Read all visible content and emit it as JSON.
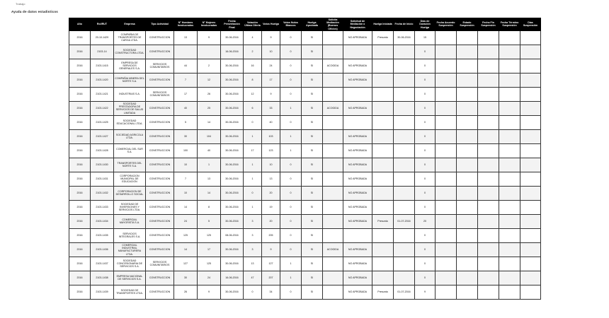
{
  "header": {
    "logo_text": "Trabajo",
    "subtitle": "Ayuda de datos estadisticos"
  },
  "colors": {
    "header_bg": "#000000",
    "logo_red": "#d9333a",
    "logo_blue": "#2b4f9e"
  },
  "table": {
    "columns": [
      "Año",
      "Rol/RUT",
      "Empresa",
      "Tipo Actividad",
      "N° Hombres Involucrados",
      "N° Mujeres Involucradas",
      "Fecha Presentación Final",
      "Votación Última Oferta",
      "Votos Huelga",
      "Votos Nulos Blancos",
      "Huelga Aprobada",
      "Solicita Mediación (Buenos Oficios)",
      "Solicitud de Mediación o Negociación",
      "Huelga Iniciada",
      "Fecha de Inicio",
      "Días de Duración Huelga",
      "Fecha Acuerdo Suspensión",
      "Estado Suspensión",
      "Fecha Fin Suspensión",
      "Fecha Término Suspensión",
      "Días Suspensión"
    ],
    "rows": [
      [
        "2016",
        "20-10-1429",
        "COMPAÑIA DE TRANSPORTES DE CARGA LTDA.",
        "CONSTRUCCION",
        "13",
        "9",
        "30-06-2016",
        "4",
        "9",
        "0",
        "SI",
        "",
        "NO APROBADA",
        "Presunta",
        "30-06-2016",
        "15",
        "",
        "",
        "",
        "",
        ""
      ],
      [
        "2016",
        "2103-14",
        "SOCIEDAD CONSTRUCTORA LTDA.",
        "CONSTRUCCION",
        "",
        "",
        "16-06-2016",
        "2",
        "10",
        "0",
        "SI",
        "",
        "",
        "",
        "",
        "0",
        "",
        "",
        "",
        "",
        ""
      ],
      [
        "2016",
        "2103-1415",
        "EMPRESA DE SERVICIOS GENERALES S.A.",
        "SERVICIOS COMUNITARIOS",
        "44",
        "2",
        "30-06-2016",
        "16",
        "24",
        "0",
        "SI",
        "ACOGIDA",
        "NO APROBADA",
        "",
        "",
        "0",
        "",
        "",
        "",
        "",
        ""
      ],
      [
        "2016",
        "2103-1420",
        "COMPAÑIA MINERA DEL NORTE S.A.",
        "CONSTRUCCION",
        "7",
        "12",
        "30-06-2016",
        "8",
        "17",
        "0",
        "SI",
        "",
        "NO APROBADA",
        "",
        "",
        "0",
        "",
        "",
        "",
        "",
        ""
      ],
      [
        "2016",
        "2103-1421",
        "INDUSTRIAS S.A.",
        "SERVICIOS COMUNITARIOS",
        "17",
        "26",
        "30-06-2016",
        "12",
        "9",
        "0",
        "SI",
        "",
        "",
        "",
        "",
        "0",
        "",
        "",
        "",
        "",
        ""
      ],
      [
        "2016",
        "2103-1422",
        "SOCIEDAD PRESTADORA DE SERVICIOS DE SALUD LIMITADA",
        "CONSTRUCCION",
        "40",
        "25",
        "30-06-2016",
        "6",
        "33",
        "1",
        "SI",
        "ACOGIDA",
        "NO APROBADA",
        "",
        "",
        "0",
        "",
        "",
        "",
        "",
        ""
      ],
      [
        "2016",
        "2103-1425",
        "SOCIEDAD EDUCACIONAL LTDA.",
        "CONSTRUCCION",
        "5",
        "14",
        "30-06-2016",
        "0",
        "40",
        "0",
        "SI",
        "",
        "",
        "",
        "",
        "0",
        "",
        "",
        "",
        "",
        ""
      ],
      [
        "2016",
        "2103-1427",
        "SOCIEDAD AGRICOLA LTDA.",
        "CONSTRUCCION",
        "30",
        "104",
        "30-06-2016",
        "1",
        "103",
        "1",
        "SI",
        "",
        "NO APROBADA",
        "",
        "",
        "0",
        "",
        "",
        "",
        "",
        ""
      ],
      [
        "2016",
        "2103-1428",
        "COMERCIAL DEL SUR S.A.",
        "CONSTRUCCION",
        "100",
        "40",
        "30-06-2016",
        "17",
        "123",
        "1",
        "SI",
        "",
        "NO APROBADA",
        "",
        "",
        "0",
        "",
        "",
        "",
        "",
        ""
      ],
      [
        "2016",
        "2103-1430",
        "TRANSPORTES DEL NORTE S.A.",
        "CONSTRUCCION",
        "10",
        "1",
        "30-06-2016",
        "1",
        "10",
        "0",
        "SI",
        "",
        "NO APROBADA",
        "",
        "",
        "0",
        "",
        "",
        "",
        "",
        ""
      ],
      [
        "2016",
        "2103-1431",
        "CORPORACION MUNICIPAL DE EDUCACION",
        "CONSTRUCCION",
        "7",
        "13",
        "30-06-2016",
        "1",
        "13",
        "0",
        "SI",
        "",
        "NO APROBADA",
        "",
        "",
        "0",
        "",
        "",
        "",
        "",
        ""
      ],
      [
        "2016",
        "2103-1432",
        "CORPORACION DE DESARROLLO SOCIAL",
        "CONSTRUCCION",
        "10",
        "14",
        "30-06-2016",
        "0",
        "20",
        "0",
        "SI",
        "",
        "NO APROBADA",
        "",
        "",
        "0",
        "",
        "",
        "",
        "",
        ""
      ],
      [
        "2016",
        "2103-1433",
        "SOCIEDAD DE INVERSIONES Y SERVICIOS LTDA.",
        "CONSTRUCCION",
        "14",
        "8",
        "30-06-2016",
        "1",
        "19",
        "0",
        "SI",
        "",
        "NO APROBADA",
        "",
        "",
        "0",
        "",
        "",
        "",
        "",
        ""
      ],
      [
        "2016",
        "2103-1434",
        "COMERCIAL MAYORISTA S.A.",
        "CONSTRUCCION",
        "24",
        "5",
        "30-06-2016",
        "3",
        "20",
        "0",
        "SI",
        "",
        "NO APROBADA",
        "Presunta",
        "01-07-2016",
        "20",
        "",
        "",
        "",
        "",
        ""
      ],
      [
        "2016",
        "2103-1435",
        "SERVICIOS INTEGRALES S.A.",
        "CONSTRUCCION",
        "125",
        "125",
        "08-06-2016",
        "3",
        "205",
        "0",
        "SI",
        "",
        "",
        "",
        "",
        "0",
        "",
        "",
        "",
        "",
        ""
      ],
      [
        "2016",
        "2103-1436",
        "COMERCIAL INDUSTRIAL MANUFACTURERA LTDA.",
        "CONSTRUCCION",
        "14",
        "17",
        "30-06-2016",
        "3",
        "9",
        "0",
        "SI",
        "ACOGIDA",
        "NO APROBADA",
        "",
        "",
        "0",
        "",
        "",
        "",
        "",
        ""
      ],
      [
        "2016",
        "2103-1437",
        "SOCIEDAD CONCESIONARIA DE SERVICIOS S.A.",
        "SERVICIOS COMUNITARIOS",
        "127",
        "125",
        "30-06-2016",
        "13",
        "127",
        "1",
        "SI",
        "",
        "NO APROBADA",
        "",
        "",
        "0",
        "",
        "",
        "",
        "",
        ""
      ],
      [
        "2016",
        "2103-1438",
        "EMPRESA NACIONAL DE SERVICIOS S.A.",
        "CONSTRUCCION",
        "30",
        "24",
        "16-06-2016",
        "47",
        "207",
        "1",
        "SI",
        "",
        "NO APROBADA",
        "",
        "",
        "0",
        "",
        "",
        "",
        "",
        ""
      ],
      [
        "2016",
        "2103-1439",
        "SOCIEDAD DE TRANSPORTES LTDA.",
        "CONSTRUCCION",
        "26",
        "9",
        "30-06-2016",
        "0",
        "34",
        "0",
        "SI",
        "",
        "NO APROBADA",
        "Presunta",
        "01-07-2016",
        "9",
        "",
        "",
        "",
        "",
        ""
      ]
    ]
  }
}
